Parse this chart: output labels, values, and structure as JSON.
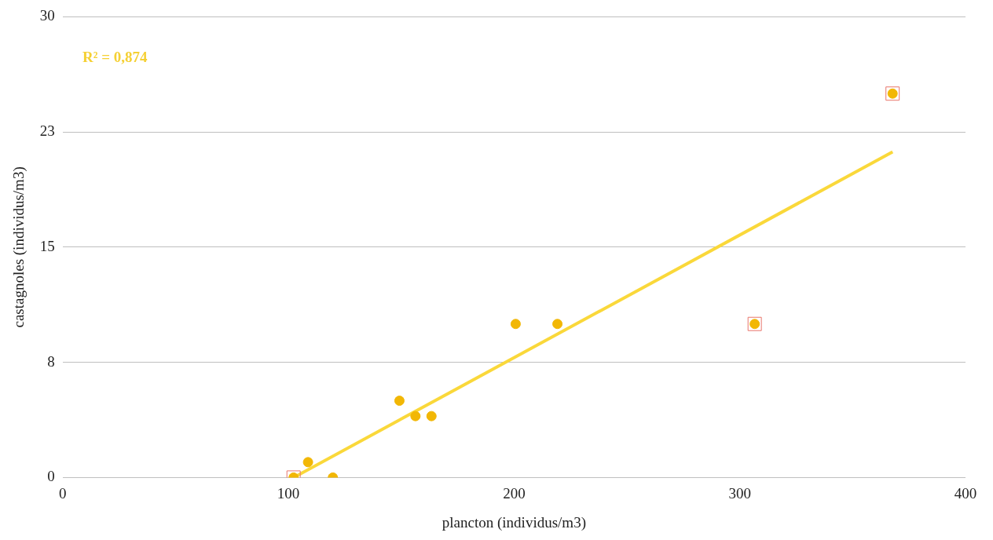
{
  "chart_data": {
    "type": "scatter",
    "xlabel": "plancton (individus/m3)",
    "ylabel": "castagnoles (individus/m3)",
    "xlim": [
      0,
      400
    ],
    "xticks": [
      0,
      100,
      200,
      300,
      400
    ],
    "ylim": [
      0,
      30
    ],
    "yticks": [
      0,
      {
        "value": 7.5,
        "label": "8"
      },
      15,
      {
        "value": 22.5,
        "label": "23"
      },
      30
    ],
    "grid": "y",
    "legend": false,
    "marker": "circle",
    "series": [
      {
        "type": "scatter",
        "color": "#f2b705",
        "x": [
          102.3,
          108.7,
          119.7,
          149.2,
          156.3,
          163.4,
          200.7,
          219.2,
          306.6,
          367.7
        ],
        "values": [
          0,
          1,
          0,
          5,
          4,
          4,
          10,
          10,
          10,
          25
        ]
      },
      {
        "type": "line",
        "color": "#fad83a",
        "x": [
          102.3,
          367.7
        ],
        "values": [
          0,
          21.2
        ],
        "marker": "none",
        "line_style": "solid"
      },
      {
        "type": "scatter",
        "color": "#e8756b",
        "x": [
          102.3,
          306.6,
          367.7
        ],
        "values": [
          0,
          10,
          25
        ],
        "marker": "square"
      }
    ],
    "annotations": [
      "R² = 0,874"
    ]
  }
}
